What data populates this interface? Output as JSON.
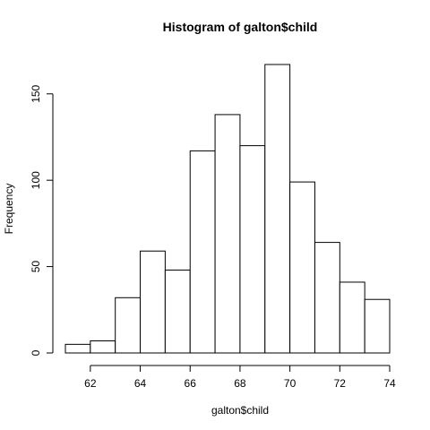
{
  "chart_data": {
    "type": "bar",
    "title": "Histogram of galton$child",
    "xlabel": "galton$child",
    "ylabel": "Frequency",
    "bin_edges": [
      61,
      62,
      63,
      64,
      65,
      66,
      67,
      68,
      69,
      70,
      71,
      72,
      73,
      74
    ],
    "values": [
      5,
      7,
      32,
      59,
      48,
      117,
      138,
      120,
      167,
      99,
      64,
      41,
      31
    ],
    "xlim": [
      61,
      74
    ],
    "ylim": [
      0,
      167
    ],
    "x_ticks": [
      62,
      64,
      66,
      68,
      70,
      72,
      74
    ],
    "y_ticks": [
      0,
      50,
      100,
      150
    ],
    "bar_fill": "#ffffff",
    "bar_stroke": "#000000",
    "grid": false
  }
}
